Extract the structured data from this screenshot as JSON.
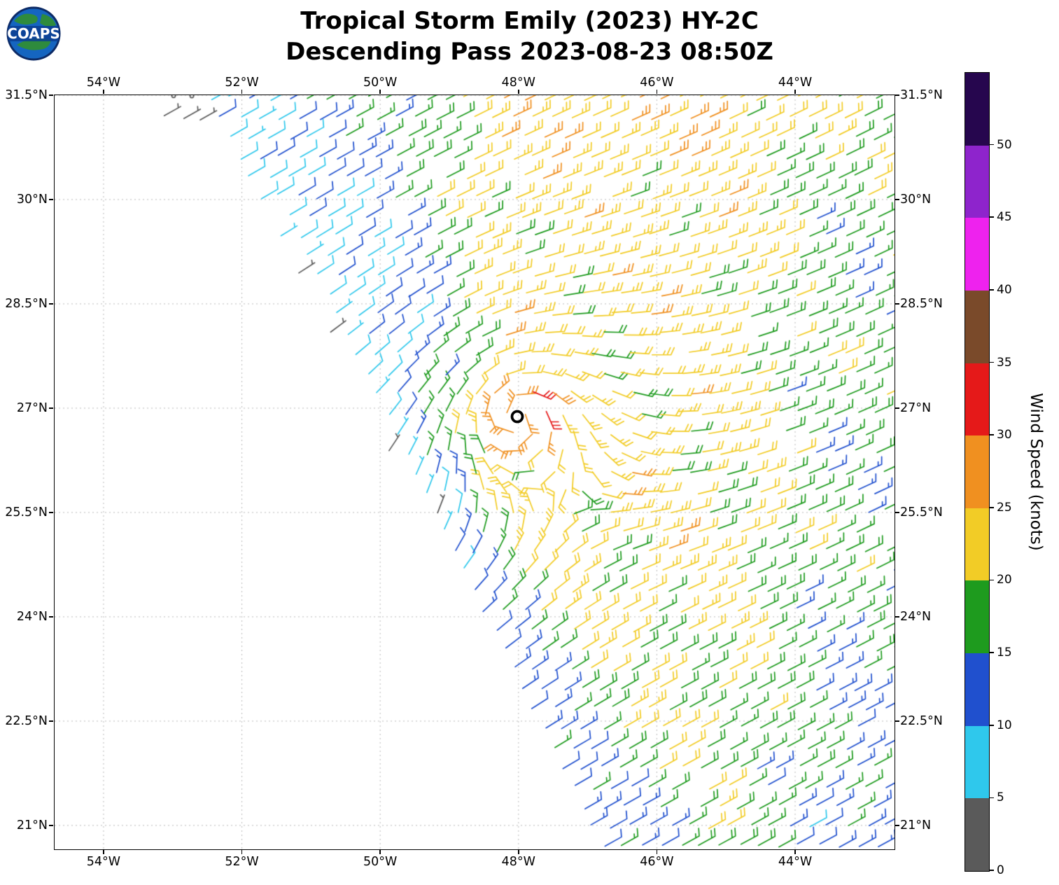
{
  "logo": {
    "text": "COAPS"
  },
  "title": {
    "line1": "Tropical Storm Emily (2023) HY-2C",
    "line2": "Descending Pass 2023-08-23 08:50Z"
  },
  "axes": {
    "lon_ticks": [
      {
        "label": "54°W",
        "lon": -54
      },
      {
        "label": "52°W",
        "lon": -52
      },
      {
        "label": "50°W",
        "lon": -50
      },
      {
        "label": "48°W",
        "lon": -48
      },
      {
        "label": "46°W",
        "lon": -46
      },
      {
        "label": "44°W",
        "lon": -44
      }
    ],
    "lat_ticks": [
      {
        "label": "31.5°N",
        "lat": 31.5
      },
      {
        "label": "30°N",
        "lat": 30
      },
      {
        "label": "28.5°N",
        "lat": 28.5
      },
      {
        "label": "27°N",
        "lat": 27
      },
      {
        "label": "25.5°N",
        "lat": 25.5
      },
      {
        "label": "24°N",
        "lat": 24
      },
      {
        "label": "22.5°N",
        "lat": 22.5
      },
      {
        "label": "21°N",
        "lat": 21
      }
    ]
  },
  "colorbar": {
    "label": "Wind Speed (knots)",
    "tick_values": [
      0,
      5,
      10,
      15,
      20,
      25,
      30,
      35,
      40,
      45,
      50
    ],
    "colors_bottom_to_top": [
      "#5A5A5A",
      "#2FC8EC",
      "#2050CE",
      "#1E9B1E",
      "#F2CC26",
      "#F09020",
      "#E51919",
      "#7A4A2A",
      "#EE22EE",
      "#8E24CC",
      "#26064E"
    ]
  },
  "chart_data": {
    "type": "wind_barb_map",
    "title": "Tropical Storm Emily (2023) HY-2C Descending Pass 2023-08-23 08:50Z",
    "satellite": "HY-2C",
    "storm_name": "Emily",
    "pass_time_utc": "2023-08-23 08:50Z",
    "lon_range": [
      -54.708,
      -42.563
    ],
    "lat_range": [
      20.657,
      31.5
    ],
    "lon_tick_values": [
      -54,
      -52,
      -50,
      -48,
      -46,
      -44
    ],
    "lat_tick_values": [
      21,
      22.5,
      24,
      25.5,
      27,
      28.5,
      30,
      31.5
    ],
    "grid": true,
    "storm_center": {
      "lon": -48.02,
      "lat": 26.88
    },
    "swath_left_edge": [
      {
        "lat": 21,
        "lon": -47.1
      },
      {
        "lat": 31.5,
        "lon": -52.5
      }
    ],
    "barb_spacing_deg": 0.283,
    "speed_levels_knots": [
      0,
      5,
      10,
      15,
      20,
      25,
      30,
      35,
      40,
      45,
      50
    ],
    "observed_speed_range_knots": [
      2,
      36
    ],
    "wind_field_summary": "Cyclonic (counterclockwise) circulation around the storm center near 48W 26.9N; strongest winds 25-35 kt in a ring east and southeast of the center; broad 20-25 kt band east of the storm; 15-20 kt over the far eastern and southern swath; 5-15 kt along the western swath edge; calm (<5 kt) flagged cells at the far northwest edge",
    "colorbar_label": "Wind Speed (knots)"
  }
}
